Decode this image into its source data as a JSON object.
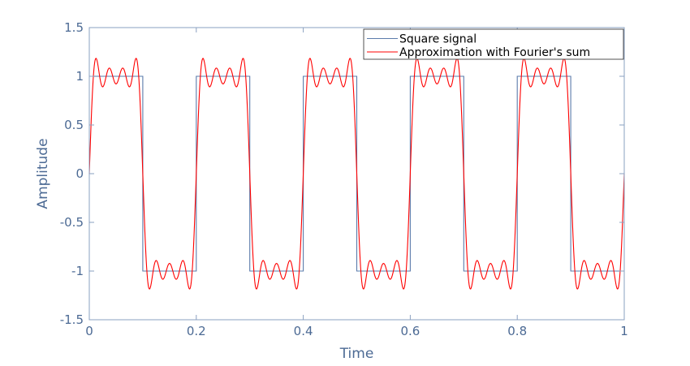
{
  "chart_data": {
    "type": "line",
    "title": "",
    "xlabel": "Time",
    "ylabel": "Amplitude",
    "xlim": [
      0,
      1
    ],
    "ylim": [
      -1.5,
      1.5
    ],
    "xticks": [
      0,
      0.2,
      0.4,
      0.6,
      0.8,
      1
    ],
    "xtick_labels": [
      "0",
      "0.2",
      "0.4",
      "0.6",
      "0.8",
      "1"
    ],
    "yticks": [
      -1.5,
      -1,
      -0.5,
      0,
      0.5,
      1,
      1.5
    ],
    "ytick_labels": [
      "-1.5",
      "-1",
      "-0.5",
      "0",
      "0.5",
      "1",
      "1.5"
    ],
    "grid": false,
    "legend_position": "upper right",
    "series": [
      {
        "name": "Square signal",
        "color": "#5b7bab",
        "kind": "square",
        "frequency": 5,
        "amplitude": 1,
        "x": [
          0,
          0.1,
          0.1,
          0.2,
          0.2,
          0.3,
          0.3,
          0.4,
          0.4,
          0.5,
          0.5,
          0.6,
          0.6,
          0.7,
          0.7,
          0.8,
          0.8,
          0.9,
          0.9,
          1.0
        ],
        "y": [
          1,
          1,
          -1,
          -1,
          1,
          1,
          -1,
          -1,
          1,
          1,
          -1,
          -1,
          1,
          1,
          -1,
          -1,
          1,
          1,
          -1,
          -1
        ]
      },
      {
        "name": "Approximation with Fourier's sum",
        "color": "#ff0000",
        "kind": "fourier",
        "frequency": 5,
        "harmonics": [
          1,
          3,
          5,
          7
        ],
        "peak_value": 1.18,
        "dip_value": 0.89,
        "x_sample": [
          0,
          0.017,
          0.034,
          0.05,
          0.066,
          0.083,
          0.1,
          0.117,
          0.134,
          0.15,
          0.166,
          0.183,
          0.2
        ],
        "y_sample": [
          0,
          1.18,
          0.89,
          1.1,
          0.89,
          1.18,
          0,
          -1.18,
          -0.89,
          -1.1,
          -0.89,
          -1.18,
          0
        ]
      }
    ]
  },
  "legend": {
    "items": [
      {
        "label": "Square signal",
        "color": "#5b7bab"
      },
      {
        "label": "Approximation with Fourier's sum",
        "color": "#ff0000"
      }
    ]
  },
  "axes": {
    "xlabel": "Time",
    "ylabel": "Amplitude",
    "axis_color": "#8aa0c0",
    "label_color": "#4c6a94"
  }
}
